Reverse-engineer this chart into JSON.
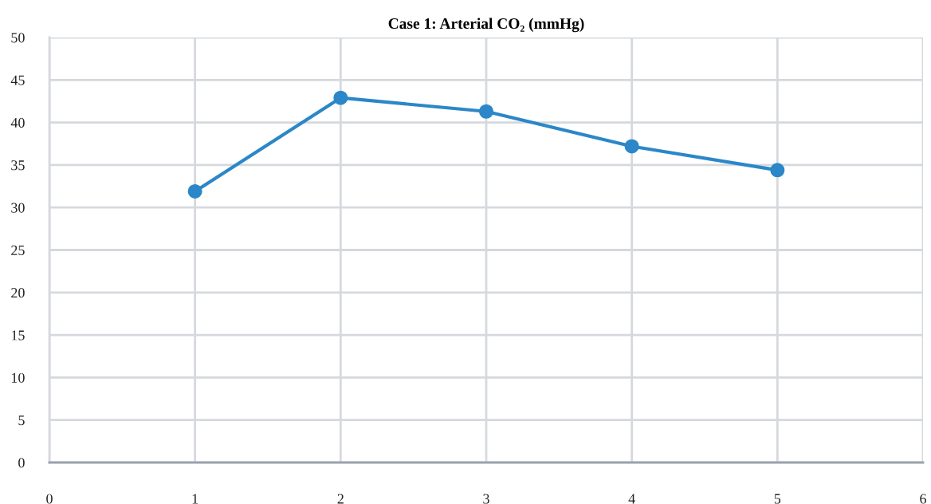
{
  "chart_data": {
    "type": "line",
    "title": "Case 1: Arterial CO₂ (mmHg)",
    "x": [
      1,
      2,
      3,
      4,
      5
    ],
    "series": [
      {
        "color": "#2b87c8",
        "values": [
          31.9,
          42.9,
          41.3,
          37.2,
          34.4
        ]
      }
    ],
    "xlim": [
      0,
      6
    ],
    "xticks": [
      0,
      1,
      2,
      3,
      4,
      5,
      6
    ],
    "ylim": [
      0,
      50
    ],
    "yticks": [
      0,
      5,
      10,
      15,
      20,
      25,
      30,
      35,
      40,
      45,
      50
    ],
    "grid": true,
    "marker": "circle",
    "line_style": "solid",
    "legend": false
  }
}
